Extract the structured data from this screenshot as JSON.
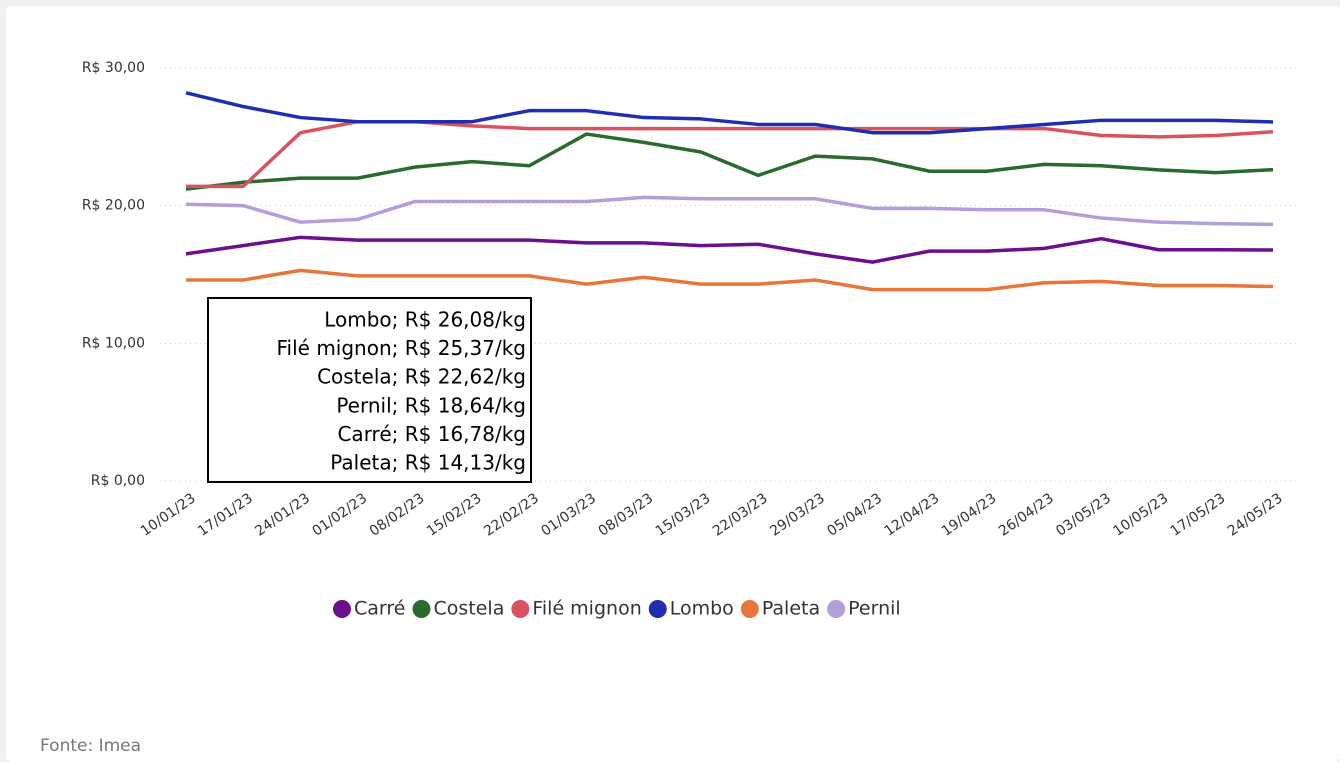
{
  "chart_data": {
    "type": "line",
    "categories": [
      "10/01/23",
      "17/01/23",
      "24/01/23",
      "01/02/23",
      "08/02/23",
      "15/02/23",
      "22/02/23",
      "01/03/23",
      "08/03/23",
      "15/03/23",
      "22/03/23",
      "29/03/23",
      "05/04/23",
      "12/04/23",
      "19/04/23",
      "26/04/23",
      "03/05/23",
      "10/05/23",
      "17/05/23",
      "24/05/23"
    ],
    "series": [
      {
        "name": "Carré",
        "color": "#6b0f8e",
        "values": [
          16.5,
          17.1,
          17.7,
          17.5,
          17.5,
          17.5,
          17.5,
          17.3,
          17.3,
          17.1,
          17.2,
          16.5,
          15.9,
          16.7,
          16.7,
          16.9,
          17.6,
          16.8,
          16.8,
          16.78
        ]
      },
      {
        "name": "Costela",
        "color": "#2b6a2d",
        "values": [
          21.2,
          21.7,
          22.0,
          22.0,
          22.8,
          23.2,
          22.9,
          25.2,
          24.6,
          23.9,
          22.2,
          23.6,
          23.4,
          22.5,
          22.5,
          23.0,
          22.9,
          22.6,
          22.4,
          22.62
        ]
      },
      {
        "name": "Filé mignon",
        "color": "#d9535f",
        "values": [
          21.4,
          21.4,
          25.3,
          26.1,
          26.1,
          25.8,
          25.6,
          25.6,
          25.6,
          25.6,
          25.6,
          25.6,
          25.6,
          25.6,
          25.6,
          25.6,
          25.1,
          25.0,
          25.1,
          25.37
        ]
      },
      {
        "name": "Lombo",
        "color": "#1f2db0",
        "values": [
          28.2,
          27.2,
          26.4,
          26.1,
          26.1,
          26.1,
          26.9,
          26.9,
          26.4,
          26.3,
          25.9,
          25.9,
          25.3,
          25.3,
          25.6,
          25.9,
          26.2,
          26.2,
          26.2,
          26.08
        ]
      },
      {
        "name": "Paleta",
        "color": "#e8763a",
        "values": [
          14.6,
          14.6,
          15.3,
          14.9,
          14.9,
          14.9,
          14.9,
          14.3,
          14.8,
          14.3,
          14.3,
          14.6,
          13.9,
          13.9,
          13.9,
          14.4,
          14.5,
          14.2,
          14.2,
          14.13
        ]
      },
      {
        "name": "Pernil",
        "color": "#b39ddb",
        "values": [
          20.1,
          20.0,
          18.8,
          19.0,
          20.3,
          20.3,
          20.3,
          20.3,
          20.6,
          20.5,
          20.5,
          20.5,
          19.8,
          19.8,
          19.7,
          19.7,
          19.1,
          18.8,
          18.7,
          18.64
        ]
      }
    ],
    "ylim": [
      0,
      30
    ],
    "yticks": [
      {
        "value": 0,
        "label": "R$ 0,00"
      },
      {
        "value": 10,
        "label": "R$ 10,00"
      },
      {
        "value": 20,
        "label": "R$ 20,00"
      },
      {
        "value": 30,
        "label": "R$ 30,00"
      }
    ],
    "grid": true,
    "annotations": [
      "Lombo; R$ 26,08/kg",
      "Filé mignon; R$ 25,37/kg",
      "Costela; R$ 22,62/kg",
      "Pernil; R$ 18,64/kg",
      "Carré; R$ 16,78/kg",
      "Paleta; R$ 14,13/kg"
    ],
    "source": "Fonte: Imea"
  }
}
